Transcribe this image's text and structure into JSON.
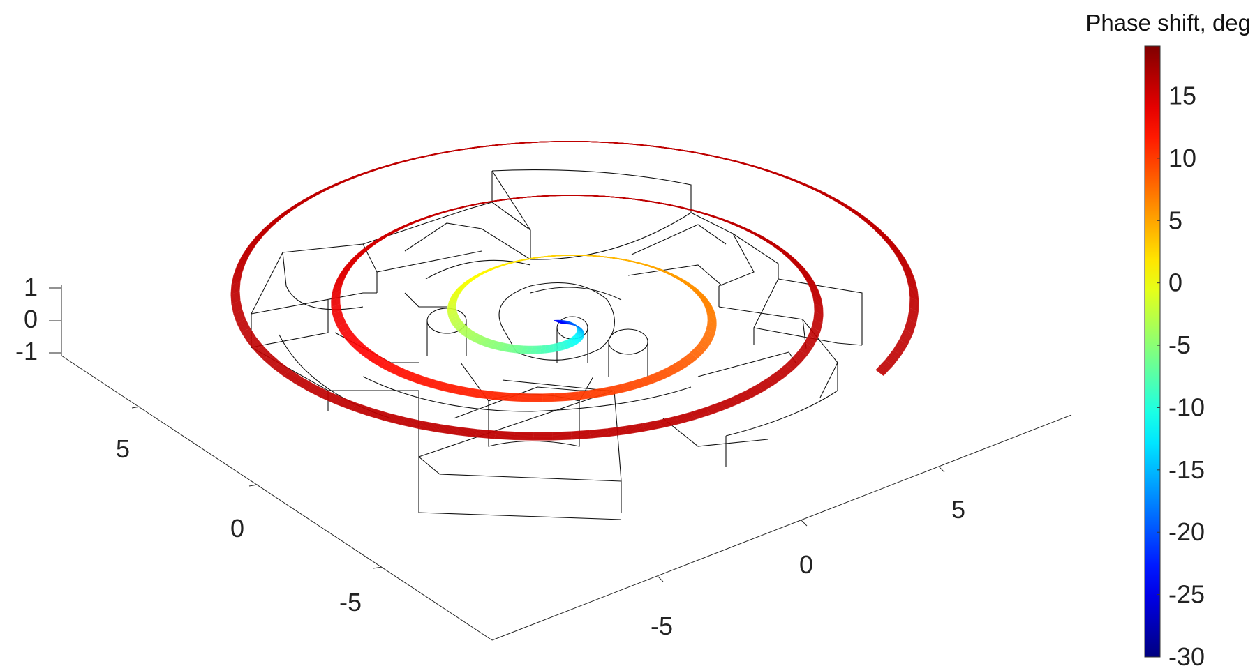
{
  "chart_data": {
    "type": "3d-streamline",
    "title": "",
    "colorbar": {
      "title": "Phase shift, deg",
      "range": [
        -30,
        19
      ],
      "ticks": [
        "15",
        "10",
        "5",
        "0",
        "-5",
        "-10",
        "-15",
        "-20",
        "-25",
        "-30"
      ],
      "tick_values": [
        15,
        10,
        5,
        0,
        -5,
        -10,
        -15,
        -20,
        -25,
        -30
      ],
      "colormap": "jet"
    },
    "axes": {
      "x": {
        "label": "",
        "ticks": [
          "-5",
          "0",
          "5"
        ],
        "tick_values": [
          -5,
          0,
          5
        ]
      },
      "y": {
        "label": "",
        "ticks": [
          "-5",
          "0",
          "5"
        ],
        "tick_values": [
          -5,
          0,
          5
        ]
      },
      "z": {
        "label": "",
        "ticks": [
          "1",
          "0",
          "-1"
        ],
        "tick_values": [
          1,
          0,
          -1
        ]
      }
    },
    "series": [
      {
        "phase_start_deg": -28,
        "phase_end_deg": 16,
        "turns": 3.1
      }
    ],
    "grid": false,
    "colors": {
      "background": "#ffffff",
      "geometry_edges": "#111111",
      "axis": "#262626"
    }
  }
}
